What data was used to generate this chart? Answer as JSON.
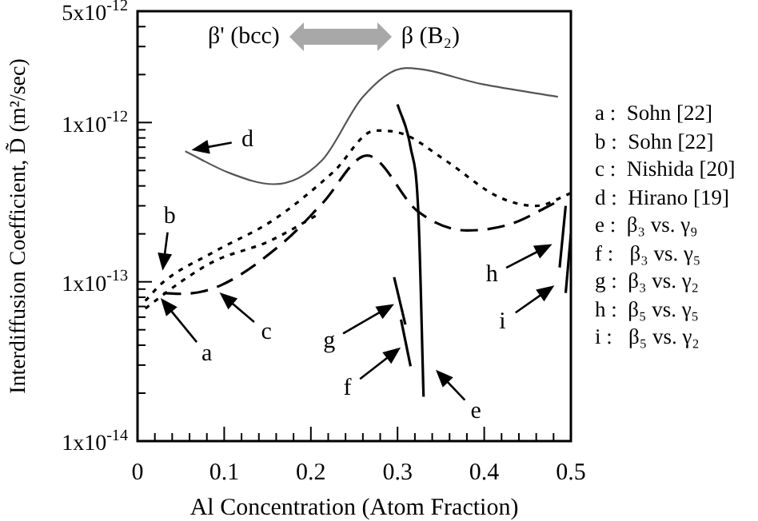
{
  "chart_data": {
    "type": "line",
    "xlabel": "Al Concentration (Atom Fraction)",
    "ylabel": "Interdiffusion Coefficient, D̃ (m²/sec)",
    "xlim": [
      0,
      0.5
    ],
    "ylim": [
      1e-14,
      5e-12
    ],
    "log": "y",
    "grid": false,
    "legend": false,
    "marker": "none",
    "xticks": [
      0,
      {
        "value": 0.02,
        "label": null
      },
      {
        "value": 0.04,
        "label": null
      },
      {
        "value": 0.06,
        "label": null
      },
      {
        "value": 0.08,
        "label": null
      },
      0.1,
      {
        "value": 0.12,
        "label": null
      },
      {
        "value": 0.14,
        "label": null
      },
      {
        "value": 0.16,
        "label": null
      },
      {
        "value": 0.18,
        "label": null
      },
      0.2,
      {
        "value": 0.22,
        "label": null
      },
      {
        "value": 0.24,
        "label": null
      },
      {
        "value": 0.26,
        "label": null
      },
      {
        "value": 0.28,
        "label": null
      },
      0.3,
      {
        "value": 0.32,
        "label": null
      },
      {
        "value": 0.34,
        "label": null
      },
      {
        "value": 0.36,
        "label": null
      },
      {
        "value": 0.38,
        "label": null
      },
      0.4,
      {
        "value": 0.42,
        "label": null
      },
      {
        "value": 0.44,
        "label": null
      },
      {
        "value": 0.46,
        "label": null
      },
      {
        "value": 0.48,
        "label": null
      },
      0.5
    ],
    "yticks": [
      {
        "value": 1e-14,
        "label": "1x10$^{-14}$"
      },
      {
        "value": 2e-14,
        "label": null
      },
      {
        "value": 3e-14,
        "label": null
      },
      {
        "value": 4e-14,
        "label": null
      },
      {
        "value": 5e-14,
        "label": null
      },
      {
        "value": 6e-14,
        "label": null
      },
      {
        "value": 7e-14,
        "label": null
      },
      {
        "value": 8e-14,
        "label": null
      },
      {
        "value": 9e-14,
        "label": null
      },
      {
        "value": 1e-13,
        "label": "1x10$^{-13}$"
      },
      {
        "value": 2e-13,
        "label": null
      },
      {
        "value": 3e-13,
        "label": null
      },
      {
        "value": 4e-13,
        "label": null
      },
      {
        "value": 5e-13,
        "label": null
      },
      {
        "value": 6e-13,
        "label": null
      },
      {
        "value": 7e-13,
        "label": null
      },
      {
        "value": 8e-13,
        "label": null
      },
      {
        "value": 9e-13,
        "label": null
      },
      {
        "value": 1e-12,
        "label": "1x10$^{-12}$"
      },
      {
        "value": 2e-12,
        "label": null
      },
      {
        "value": 3e-12,
        "label": null
      },
      {
        "value": 4e-12,
        "label": null
      },
      {
        "value": 5e-12,
        "label": "5x10$^{-12}$"
      }
    ],
    "series": [
      {
        "color": "#000000",
        "line_style": "dotted",
        "x": [
          0.009,
          0.05,
          0.089,
          0.152,
          0.211
        ],
        "values": [
          6.8e-14,
          1e-13,
          1.35e-13,
          1.8e-13,
          2.7e-13
        ]
      },
      {
        "color": "#000000",
        "line_style": "dotted",
        "x": [
          0.009,
          0.03,
          0.089,
          0.157,
          0.226,
          0.274,
          0.306,
          0.355,
          0.417,
          0.46,
          0.5
        ],
        "values": [
          7.6e-14,
          1e-13,
          1.55e-13,
          2.45e-13,
          4.9e-13,
          8.9e-13,
          8.5e-13,
          5.8e-13,
          3.4e-13,
          3e-13,
          3.6e-13
        ]
      },
      {
        "color": "#000000",
        "line_style": "dashed",
        "x": [
          0.03,
          0.05,
          0.096,
          0.17,
          0.213,
          0.265,
          0.324,
          0.38,
          0.43,
          0.485
        ],
        "values": [
          8.5e-14,
          8.4e-14,
          9.5e-14,
          1.8e-13,
          3.1e-13,
          6.2e-13,
          2.75e-13,
          2.1e-13,
          2.3e-13,
          3.2e-13
        ]
      },
      {
        "color": "#555555",
        "line_style": "solid",
        "x": [
          0.055,
          0.107,
          0.157,
          0.213,
          0.26,
          0.31,
          0.398,
          0.485
        ],
        "values": [
          6.6e-13,
          4.8e-13,
          4.1e-13,
          5.8e-13,
          1.45e-12,
          2.2e-12,
          1.74e-12,
          1.45e-12
        ]
      },
      {
        "color": "#000000",
        "line_style": "solid",
        "x": [
          0.3,
          0.315,
          0.324,
          0.33
        ],
        "values": [
          1.3e-12,
          7e-13,
          2.7e-13,
          1.9e-14
        ]
      },
      {
        "color": "#000000",
        "line_style": "solid",
        "x": [
          0.304,
          0.315
        ],
        "values": [
          5.8e-14,
          2.95e-14
        ]
      },
      {
        "color": "#000000",
        "line_style": "solid",
        "x": [
          0.296,
          0.309
        ],
        "values": [
          1.07e-13,
          5.4e-14
        ]
      },
      {
        "color": "#000000",
        "line_style": "solid",
        "x": [
          0.494,
          0.487
        ],
        "values": [
          3e-13,
          1.23e-13
        ]
      },
      {
        "color": "#000000",
        "line_style": "solid",
        "x": [
          0.5,
          0.494
        ],
        "values": [
          2e-13,
          8.5e-14
        ]
      }
    ],
    "annotations": [
      {
        "text": "a",
        "x": 0.022,
        "y": 8.5e-14
      },
      {
        "text": "b",
        "x": 0.028,
        "y": 1.07e-13
      },
      {
        "text": "c",
        "x": 0.089,
        "y": 9.1e-14
      },
      {
        "text": "d",
        "x": 0.055,
        "y": 6.6e-13
      },
      {
        "text": "e",
        "x": 0.339,
        "y": 3e-14
      },
      {
        "text": "f",
        "x": 0.3095,
        "y": 4.1e-14
      },
      {
        "text": "g",
        "x": 0.3025,
        "y": 7.6e-14
      },
      {
        "text": "h",
        "x": 0.485,
        "y": 1.8e-13
      },
      {
        "text": "i",
        "x": 0.487,
        "y": 1e-13
      },
      "β' (bcc)",
      "β (B₂)",
      "a :  Sohn [22]",
      "b :  Sohn [22]",
      "c :  Nishida [20]",
      "d :  Hirano [19]",
      "e :  β₃ vs. γ₉",
      "f :   β₃ vs. γ₅",
      "g :  β₃ vs. γ₂",
      "h :  β₅ vs. γ₅",
      "i :   β₅ vs. γ₂"
    ]
  }
}
